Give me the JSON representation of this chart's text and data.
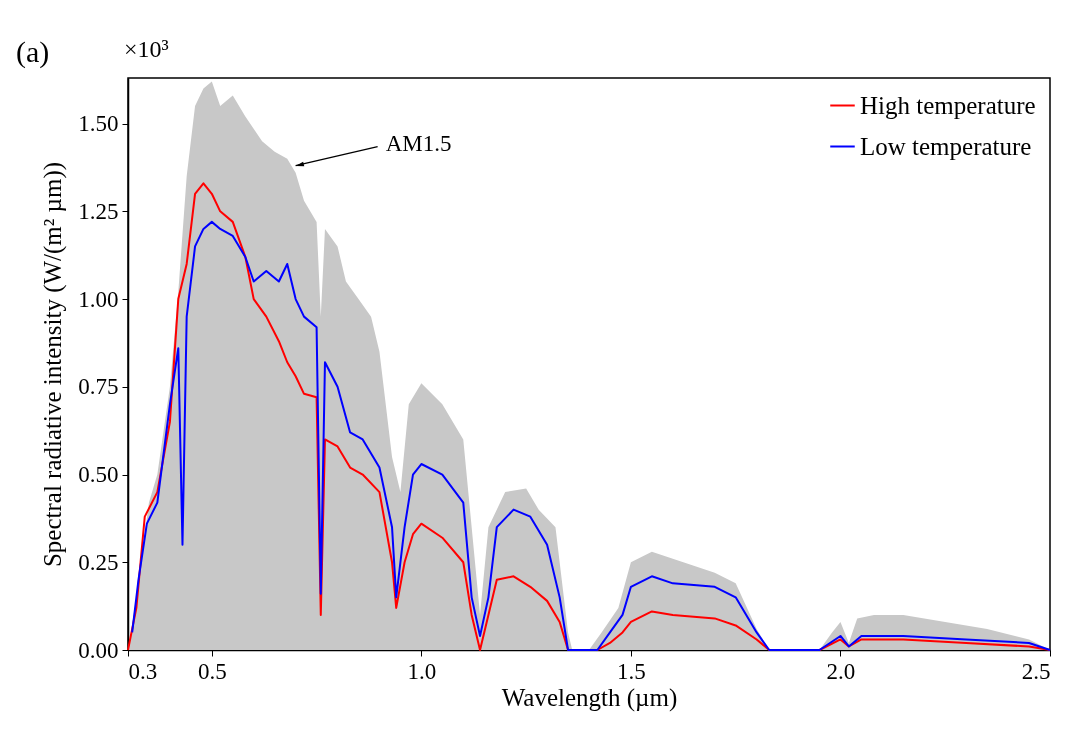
{
  "chart_data": {
    "type": "line",
    "xlabel": "Wavelength (µm)",
    "ylabel": "Spectral radiative intensity (W/(m² µm))",
    "annotations": [
      "(a)",
      "×10³",
      {
        "text": "AM1.5",
        "x": 0.7,
        "y": 1.38
      }
    ],
    "xlim": [
      0.3,
      2.5
    ],
    "xticks": [
      0.3,
      0.5,
      {
        "value": 1,
        "label": "1.0"
      },
      1.5,
      {
        "value": 2,
        "label": "2.0"
      },
      2.5
    ],
    "ylim": [
      0,
      1.63
    ],
    "yticks": [
      {
        "value": 0,
        "label": "0.00"
      },
      0.25,
      {
        "value": 0.5,
        "label": "0.50"
      },
      0.75,
      {
        "value": 1,
        "label": "1.00"
      },
      1.25,
      {
        "value": 1.5,
        "label": "1.50"
      }
    ],
    "grid": false,
    "legend": "top right",
    "marker": "none",
    "line_style": "solid",
    "series": [
      {
        "type": "area",
        "color": "#c8c8c8",
        "x": [
          0.3,
          0.32,
          0.35,
          0.37,
          0.4,
          0.42,
          0.44,
          0.46,
          0.48,
          0.5,
          0.52,
          0.55,
          0.58,
          0.62,
          0.65,
          0.68,
          0.7,
          0.72,
          0.75,
          0.76,
          0.77,
          0.8,
          0.82,
          0.85,
          0.88,
          0.9,
          0.93,
          0.95,
          0.97,
          1.0,
          1.05,
          1.1,
          1.12,
          1.14,
          1.16,
          1.2,
          1.25,
          1.28,
          1.32,
          1.35,
          1.36,
          1.4,
          1.43,
          1.47,
          1.5,
          1.55,
          1.6,
          1.65,
          1.7,
          1.75,
          1.8,
          1.83,
          1.95,
          1.98,
          2.0,
          2.02,
          2.04,
          2.08,
          2.15,
          2.25,
          2.35,
          2.45,
          2.5
        ],
        "values": [
          0,
          0.15,
          0.42,
          0.5,
          0.75,
          1.02,
          1.35,
          1.55,
          1.6,
          1.62,
          1.55,
          1.58,
          1.52,
          1.45,
          1.42,
          1.4,
          1.36,
          1.28,
          1.22,
          0.95,
          1.2,
          1.15,
          1.05,
          1.0,
          0.95,
          0.85,
          0.55,
          0.45,
          0.7,
          0.76,
          0.7,
          0.6,
          0.35,
          0.1,
          0.35,
          0.45,
          0.46,
          0.4,
          0.35,
          0.05,
          0,
          0,
          0.05,
          0.12,
          0.25,
          0.28,
          0.26,
          0.24,
          0.22,
          0.19,
          0.06,
          0,
          0,
          0.05,
          0.08,
          0.02,
          0.09,
          0.1,
          0.1,
          0.08,
          0.06,
          0.03,
          0
        ]
      },
      {
        "type": "line",
        "name": "High temperature",
        "color": "#ff0000",
        "x": [
          0.3,
          0.32,
          0.34,
          0.37,
          0.4,
          0.42,
          0.44,
          0.46,
          0.48,
          0.5,
          0.52,
          0.55,
          0.58,
          0.6,
          0.63,
          0.66,
          0.68,
          0.7,
          0.72,
          0.75,
          0.76,
          0.77,
          0.8,
          0.83,
          0.86,
          0.9,
          0.93,
          0.94,
          0.96,
          0.98,
          1.0,
          1.05,
          1.1,
          1.12,
          1.14,
          1.16,
          1.18,
          1.22,
          1.26,
          1.3,
          1.33,
          1.35,
          1.42,
          1.45,
          1.48,
          1.5,
          1.55,
          1.6,
          1.7,
          1.75,
          1.8,
          1.83,
          1.95,
          2.0,
          2.02,
          2.05,
          2.15,
          2.3,
          2.45,
          2.5
        ],
        "values": [
          0,
          0.12,
          0.38,
          0.45,
          0.65,
          1.0,
          1.1,
          1.3,
          1.33,
          1.3,
          1.25,
          1.22,
          1.12,
          1.0,
          0.95,
          0.88,
          0.82,
          0.78,
          0.73,
          0.72,
          0.1,
          0.6,
          0.58,
          0.52,
          0.5,
          0.45,
          0.25,
          0.12,
          0.25,
          0.33,
          0.36,
          0.32,
          0.25,
          0.1,
          0.0,
          0.1,
          0.2,
          0.21,
          0.18,
          0.14,
          0.08,
          0,
          0,
          0.02,
          0.05,
          0.08,
          0.11,
          0.1,
          0.09,
          0.07,
          0.03,
          0,
          0,
          0.03,
          0.01,
          0.03,
          0.03,
          0.02,
          0.01,
          0
        ]
      },
      {
        "type": "line",
        "name": "Low temperature",
        "color": "#0000ff",
        "x": [
          0.31,
          0.325,
          0.345,
          0.37,
          0.4,
          0.42,
          0.43,
          0.44,
          0.46,
          0.48,
          0.5,
          0.52,
          0.55,
          0.58,
          0.6,
          0.63,
          0.66,
          0.68,
          0.7,
          0.72,
          0.75,
          0.76,
          0.77,
          0.8,
          0.83,
          0.86,
          0.9,
          0.93,
          0.94,
          0.96,
          0.98,
          1.0,
          1.05,
          1.1,
          1.12,
          1.14,
          1.16,
          1.18,
          1.22,
          1.26,
          1.3,
          1.33,
          1.35,
          1.42,
          1.45,
          1.48,
          1.5,
          1.55,
          1.6,
          1.7,
          1.75,
          1.8,
          1.83,
          1.95,
          2.0,
          2.02,
          2.05,
          2.15,
          2.3,
          2.45,
          2.5
        ],
        "values": [
          0.05,
          0.2,
          0.36,
          0.42,
          0.7,
          0.86,
          0.3,
          0.95,
          1.15,
          1.2,
          1.22,
          1.2,
          1.18,
          1.12,
          1.05,
          1.08,
          1.05,
          1.1,
          1.0,
          0.95,
          0.92,
          0.16,
          0.82,
          0.75,
          0.62,
          0.6,
          0.52,
          0.35,
          0.15,
          0.35,
          0.5,
          0.53,
          0.5,
          0.42,
          0.15,
          0.04,
          0.15,
          0.35,
          0.4,
          0.38,
          0.3,
          0.15,
          0,
          0,
          0.05,
          0.1,
          0.18,
          0.21,
          0.19,
          0.18,
          0.15,
          0.05,
          0,
          0,
          0.04,
          0.01,
          0.04,
          0.04,
          0.03,
          0.02,
          0
        ]
      }
    ]
  }
}
